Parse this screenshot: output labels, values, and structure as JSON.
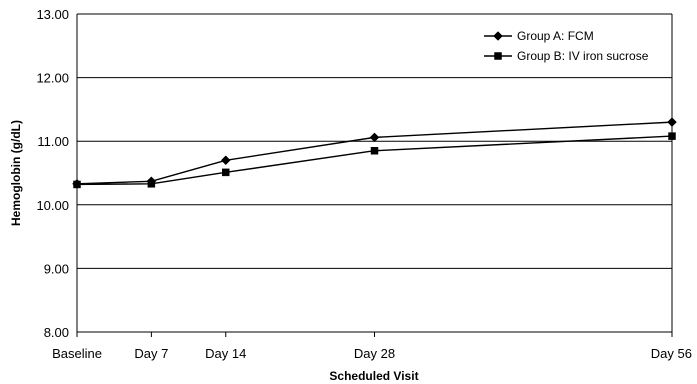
{
  "chart_data": {
    "type": "line",
    "title": "",
    "xlabel": "Scheduled Visit",
    "ylabel": "Hemoglobin (g/dL)",
    "x": [
      0,
      7,
      14,
      28,
      56
    ],
    "categories": [
      "Baseline",
      "Day 7",
      "Day 14",
      "Day 28",
      "Day 56"
    ],
    "ylim": [
      8.0,
      13.0
    ],
    "yticks": [
      "8.00",
      "9.00",
      "10.00",
      "11.00",
      "12.00",
      "13.00"
    ],
    "grid": "horizontal",
    "legend_position": "top-right",
    "series": [
      {
        "name": "Group A: FCM",
        "marker": "diamond",
        "color": "#000000",
        "values": [
          10.33,
          10.37,
          10.7,
          11.06,
          11.3
        ]
      },
      {
        "name": "Group B: IV iron sucrose",
        "marker": "square",
        "color": "#000000",
        "values": [
          10.32,
          10.33,
          10.51,
          10.85,
          11.08
        ]
      }
    ]
  }
}
